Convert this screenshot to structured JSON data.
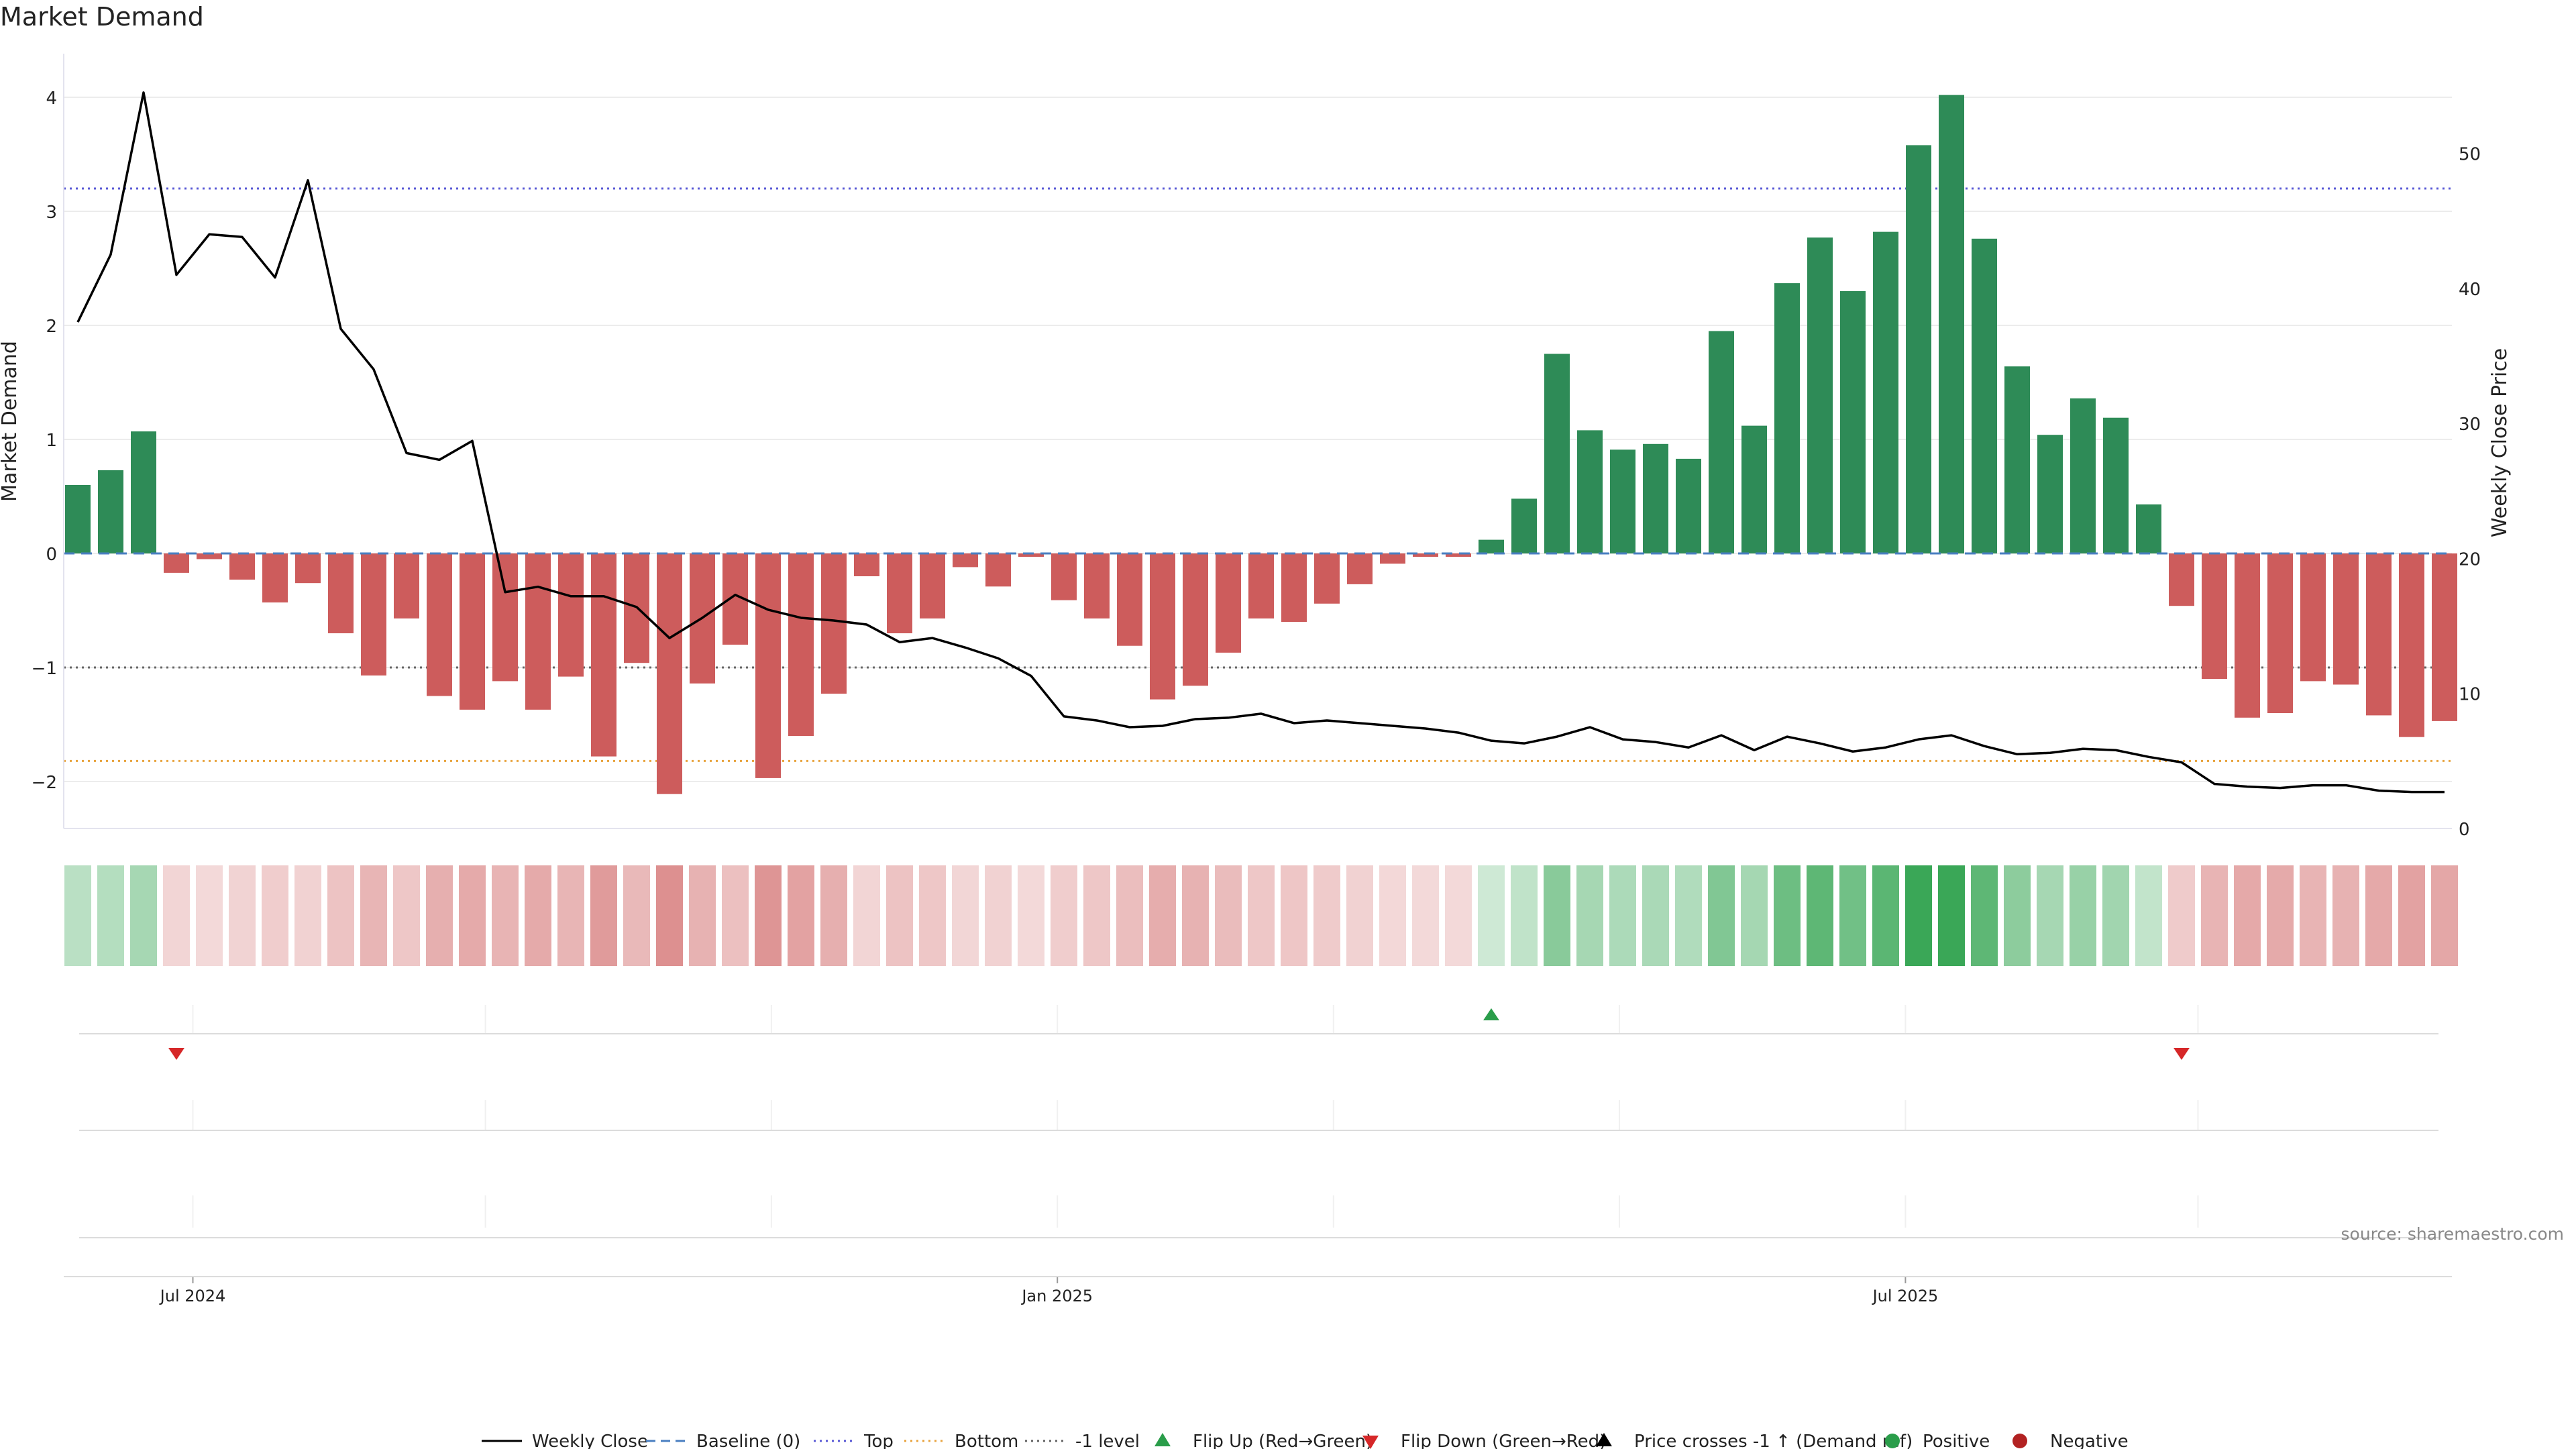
{
  "chart_data": {
    "type": "bar",
    "title": "Market Demand",
    "ylabel": "Market Demand",
    "y2label": "Weekly Close Price",
    "ylim": [
      -2.4,
      4.4
    ],
    "y2lim": [
      0,
      56
    ],
    "yticks": [
      -2,
      -1,
      0,
      1,
      2,
      3,
      4
    ],
    "ytick_labels": [
      "−2",
      "−1",
      "0",
      "1",
      "2",
      "3",
      "4"
    ],
    "y2ticks": [
      0,
      10,
      20,
      30,
      40,
      50
    ],
    "y2tick_labels": [
      "0",
      "10",
      "20",
      "30",
      "40",
      "50"
    ],
    "x_tick_labels": [
      {
        "label": "Jul 2024",
        "index": 3.5
      },
      {
        "label": "Jan 2025",
        "index": 29.8
      },
      {
        "label": "Jul 2025",
        "index": 55.6
      }
    ],
    "x_gridlines": [
      3.5,
      12.4,
      21.1,
      29.8,
      38.2,
      46.9,
      55.6,
      64.5
    ],
    "colors": {
      "positive": "#2e8b57",
      "negative": "#cd5c5c",
      "price": "#000000",
      "baseline": "#4a7fc1",
      "top": "#5b5bd6",
      "bottom": "#e8a33d",
      "minus_one": "#666666",
      "flip_up": "#2a9d4a",
      "flip_down": "#d62728",
      "pos_dot": "#2a9d4a",
      "neg_dot": "#b22222"
    },
    "levels": {
      "baseline": 0,
      "top": 3.2,
      "bottom": -1.82,
      "minus_one": -1
    },
    "demand": [
      0.6,
      0.73,
      1.07,
      -0.17,
      -0.05,
      -0.23,
      -0.43,
      -0.26,
      -0.7,
      -1.07,
      -0.57,
      -1.25,
      -1.37,
      -1.12,
      -1.37,
      -1.08,
      -1.78,
      -0.96,
      -2.11,
      -1.14,
      -0.8,
      -1.97,
      -1.6,
      -1.23,
      -0.2,
      -0.7,
      -0.57,
      -0.12,
      -0.29,
      -0.03,
      -0.41,
      -0.57,
      -0.81,
      -1.28,
      -1.16,
      -0.87,
      -0.57,
      -0.6,
      -0.44,
      -0.27,
      -0.09,
      -0.03,
      -0.03,
      0.12,
      0.48,
      1.75,
      1.08,
      0.91,
      0.96,
      0.83,
      1.95,
      1.12,
      2.37,
      2.77,
      2.3,
      2.82,
      3.58,
      4.02,
      2.76,
      1.64,
      1.04,
      1.36,
      1.19,
      0.43,
      -0.46,
      -1.1,
      -1.44,
      -1.4,
      -1.12,
      -1.15,
      -1.42,
      -1.61,
      -1.47
    ],
    "price": [
      37.5,
      42.5,
      54.5,
      41,
      44,
      43.8,
      40.8,
      48,
      37,
      34,
      27.8,
      27.3,
      28.7,
      17.5,
      17.9,
      17.2,
      17.2,
      16.4,
      14.1,
      15.6,
      17.3,
      16.2,
      15.6,
      15.4,
      15.1,
      13.8,
      14.1,
      13.4,
      12.6,
      11.3,
      8.3,
      8.0,
      7.5,
      7.6,
      8.1,
      8.2,
      8.5,
      7.8,
      8.0,
      7.8,
      7.6,
      7.4,
      7.1,
      6.5,
      6.3,
      6.8,
      7.5,
      6.6,
      6.4,
      6.0,
      6.9,
      5.8,
      6.8,
      6.3,
      5.7,
      6.0,
      6.6,
      6.9,
      6.1,
      5.5,
      5.6,
      5.9,
      5.8,
      5.3,
      4.9,
      3.3,
      3.1,
      3.0,
      3.2,
      3.2,
      2.8,
      2.7,
      2.7
    ],
    "flip_up_indices": [
      43
    ],
    "flip_down_indices": [
      3,
      64
    ],
    "legend": [
      {
        "label": "Weekly Close",
        "kind": "line",
        "color": "#000000"
      },
      {
        "label": "Baseline (0)",
        "kind": "dash",
        "color": "#4a7fc1"
      },
      {
        "label": "Top",
        "kind": "dot",
        "color": "#5b5bd6"
      },
      {
        "label": "Bottom",
        "kind": "dot",
        "color": "#e8a33d"
      },
      {
        "label": "-1 level",
        "kind": "dot",
        "color": "#666666"
      },
      {
        "label": "Flip Up (Red→Green)",
        "kind": "tri-up",
        "color": "#2a9d4a"
      },
      {
        "label": "Flip Down (Green→Red)",
        "kind": "tri-down",
        "color": "#d62728"
      },
      {
        "label": "Price crosses -1 ↑ (Demand ref)",
        "kind": "tri-up",
        "color": "#000000"
      },
      {
        "label": "Positive",
        "kind": "dot-marker",
        "color": "#2a9d4a"
      },
      {
        "label": "Negative",
        "kind": "dot-marker",
        "color": "#b22222"
      }
    ],
    "source": "source: sharemaestro.com"
  }
}
